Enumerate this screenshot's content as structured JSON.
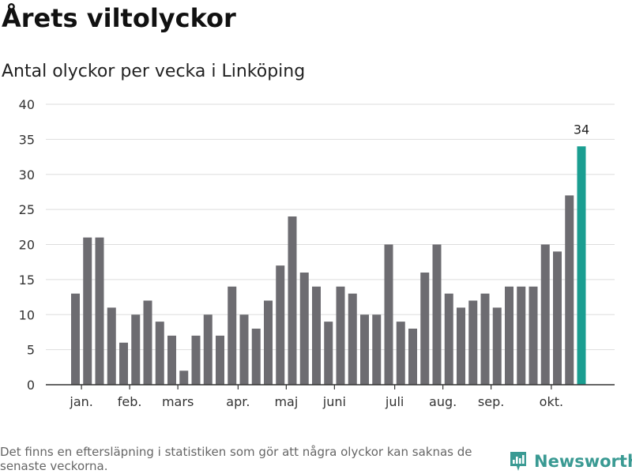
{
  "title": "Årets viltolyckor",
  "subtitle": "Antal olyckor per vecka i Linköping",
  "footnote": "Det finns en eftersläpning i statistiken som gör att några olyckor kan saknas de senaste veckorna.",
  "brand": {
    "name": "Newsworthy",
    "icon": "newsworthy-chart-bubble-icon",
    "color": "#3a9a93"
  },
  "colors": {
    "bar": "#6d6c71",
    "highlight": "#1a9e91",
    "grid": "#dddddd",
    "axis": "#333333"
  },
  "chart_data": {
    "type": "bar",
    "title": "Antal olyckor per vecka i Linköping",
    "xlabel": "",
    "ylabel": "",
    "ylim": [
      0,
      40
    ],
    "yticks": [
      0,
      5,
      10,
      15,
      20,
      25,
      30,
      35,
      40
    ],
    "grid": true,
    "values": [
      13,
      21,
      21,
      11,
      6,
      10,
      12,
      9,
      7,
      2,
      7,
      10,
      7,
      14,
      10,
      8,
      12,
      17,
      24,
      16,
      14,
      9,
      14,
      13,
      10,
      10,
      20,
      9,
      8,
      16,
      20,
      13,
      11,
      12,
      13,
      11,
      14,
      14,
      14,
      20,
      19,
      27,
      34
    ],
    "highlight_index": 42,
    "value_labels": [
      {
        "index": 42,
        "text": "34"
      }
    ],
    "month_labels": [
      {
        "label": "jan.",
        "week_index": 0.5
      },
      {
        "label": "feb.",
        "week_index": 4.5
      },
      {
        "label": "mars",
        "week_index": 8.5
      },
      {
        "label": "apr.",
        "week_index": 13.5
      },
      {
        "label": "maj",
        "week_index": 17.5
      },
      {
        "label": "juni",
        "week_index": 21.5
      },
      {
        "label": "juli",
        "week_index": 26.5
      },
      {
        "label": "aug.",
        "week_index": 30.5
      },
      {
        "label": "sep.",
        "week_index": 34.5
      },
      {
        "label": "okt.",
        "week_index": 39.5
      }
    ]
  }
}
